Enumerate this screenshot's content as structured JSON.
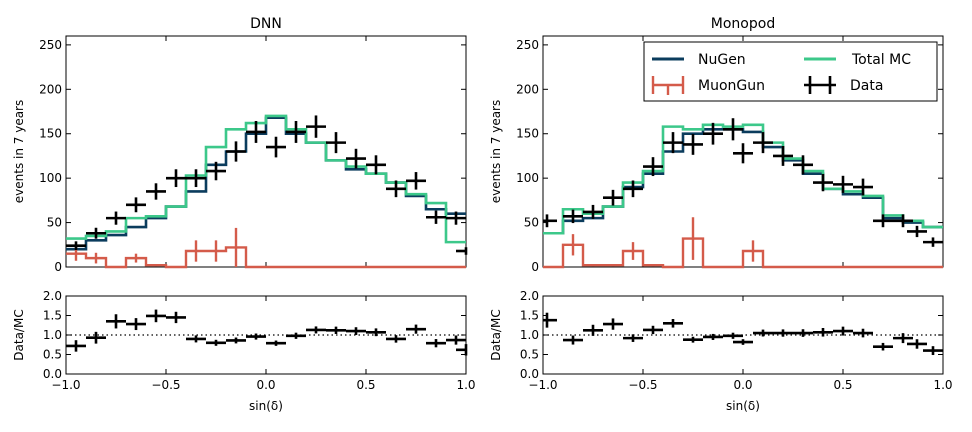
{
  "chart_data": [
    {
      "type": "histogram",
      "title": "DNN",
      "xlabel": "sin(δ)",
      "ylabel": "events in 7 years",
      "ratio_ylabel": "Data/MC",
      "xlim": [
        -1.0,
        1.0
      ],
      "ylim": [
        0,
        260
      ],
      "ratio_ylim": [
        0.0,
        2.0
      ],
      "bin_edges": [
        -1.0,
        -0.9,
        -0.8,
        -0.7,
        -0.6,
        -0.5,
        -0.4,
        -0.3,
        -0.2,
        -0.1,
        0.0,
        0.1,
        0.2,
        0.3,
        0.4,
        0.5,
        0.6,
        0.7,
        0.8,
        0.9,
        1.0
      ],
      "series": [
        {
          "name": "NuGen",
          "color": "#0b3c5d",
          "values": [
            20,
            30,
            36,
            45,
            55,
            68,
            85,
            115,
            130,
            150,
            168,
            150,
            140,
            120,
            110,
            105,
            95,
            80,
            65,
            60
          ]
        },
        {
          "name": "Total MC",
          "color": "#3cc88a",
          "values": [
            32,
            35,
            40,
            55,
            57,
            68,
            103,
            135,
            155,
            162,
            170,
            155,
            140,
            120,
            113,
            105,
            95,
            82,
            72,
            28
          ]
        },
        {
          "name": "MuonGun",
          "color": "#d45b4a",
          "values": [
            15,
            10,
            0,
            10,
            2,
            0,
            18,
            18,
            22,
            0,
            0,
            0,
            0,
            0,
            0,
            0,
            0,
            0,
            0,
            0
          ],
          "errors": [
            8,
            6,
            0,
            5,
            1,
            0,
            12,
            12,
            22,
            0,
            0,
            0,
            0,
            0,
            0,
            0,
            0,
            0,
            0,
            0
          ]
        },
        {
          "name": "Data",
          "color": "#000000",
          "values": [
            24,
            38,
            55,
            70,
            85,
            100,
            100,
            108,
            130,
            152,
            135,
            152,
            158,
            140,
            122,
            115,
            88,
            97,
            56,
            55,
            18
          ]
        }
      ],
      "data_x": [
        -0.95,
        -0.85,
        -0.75,
        -0.65,
        -0.55,
        -0.45,
        -0.35,
        -0.25,
        -0.15,
        -0.05,
        0.05,
        0.15,
        0.25,
        0.35,
        0.45,
        0.55,
        0.65,
        0.75,
        0.85,
        0.95,
        1.0
      ],
      "ratio": [
        0.72,
        0.93,
        1.35,
        1.28,
        1.49,
        1.45,
        0.9,
        0.8,
        0.86,
        0.96,
        0.79,
        0.98,
        1.13,
        1.12,
        1.1,
        1.07,
        0.9,
        1.15,
        0.79,
        0.87,
        0.62
      ]
    },
    {
      "type": "histogram",
      "title": "Monopod",
      "xlabel": "sin(δ)",
      "ylabel": "events in 7 years",
      "ratio_ylabel": "Data/MC",
      "xlim": [
        -1.0,
        1.0
      ],
      "ylim": [
        0,
        260
      ],
      "ratio_ylim": [
        0.0,
        2.0
      ],
      "bin_edges": [
        -1.0,
        -0.9,
        -0.8,
        -0.7,
        -0.6,
        -0.5,
        -0.4,
        -0.3,
        -0.2,
        -0.1,
        0.0,
        0.1,
        0.2,
        0.3,
        0.4,
        0.5,
        0.6,
        0.7,
        0.8,
        0.9,
        1.0
      ],
      "series": [
        {
          "name": "NuGen",
          "color": "#0b3c5d",
          "values": [
            38,
            52,
            55,
            68,
            90,
            105,
            130,
            150,
            155,
            155,
            152,
            135,
            120,
            105,
            88,
            82,
            78,
            55,
            50,
            45
          ]
        },
        {
          "name": "Total MC",
          "color": "#3cc88a",
          "values": [
            38,
            65,
            60,
            68,
            95,
            108,
            158,
            155,
            160,
            158,
            160,
            140,
            122,
            108,
            88,
            85,
            80,
            58,
            52,
            45
          ]
        },
        {
          "name": "MuonGun",
          "color": "#d45b4a",
          "values": [
            0,
            25,
            2,
            2,
            18,
            2,
            0,
            32,
            0,
            0,
            18,
            0,
            0,
            0,
            0,
            0,
            0,
            0,
            0,
            0
          ],
          "errors": [
            0,
            12,
            1,
            1,
            10,
            1,
            0,
            24,
            0,
            0,
            12,
            0,
            0,
            0,
            0,
            0,
            0,
            0,
            0,
            0
          ]
        },
        {
          "name": "Data",
          "color": "#000000",
          "values": [
            52,
            57,
            62,
            78,
            88,
            113,
            140,
            138,
            150,
            155,
            128,
            140,
            125,
            115,
            95,
            93,
            90,
            52,
            52,
            40,
            28
          ]
        }
      ],
      "data_x": [
        -0.98,
        -0.85,
        -0.75,
        -0.65,
        -0.55,
        -0.45,
        -0.35,
        -0.25,
        -0.15,
        -0.05,
        0.0,
        0.1,
        0.2,
        0.3,
        0.4,
        0.5,
        0.6,
        0.7,
        0.8,
        0.87,
        0.95
      ],
      "ratio": [
        1.38,
        0.87,
        1.12,
        1.28,
        0.92,
        1.13,
        1.3,
        0.88,
        0.95,
        0.98,
        0.82,
        1.05,
        1.05,
        1.05,
        1.07,
        1.1,
        1.05,
        0.7,
        0.92,
        0.77,
        0.6
      ]
    }
  ],
  "legend": {
    "items": [
      {
        "label": "NuGen",
        "style": "line",
        "color": "#0b3c5d"
      },
      {
        "label": "Total MC",
        "style": "line",
        "color": "#3cc88a"
      },
      {
        "label": "MuonGun",
        "style": "errorbar",
        "color": "#d45b4a"
      },
      {
        "label": "Data",
        "style": "errorbar",
        "color": "#000000"
      }
    ]
  },
  "ticks": {
    "main_y": [
      "0",
      "50",
      "100",
      "150",
      "200",
      "250"
    ],
    "ratio_y": [
      "0.0",
      "0.5",
      "1.0",
      "1.5",
      "2.0"
    ],
    "x": [
      "−1.0",
      "−0.5",
      "0.0",
      "0.5",
      "1.0"
    ]
  }
}
